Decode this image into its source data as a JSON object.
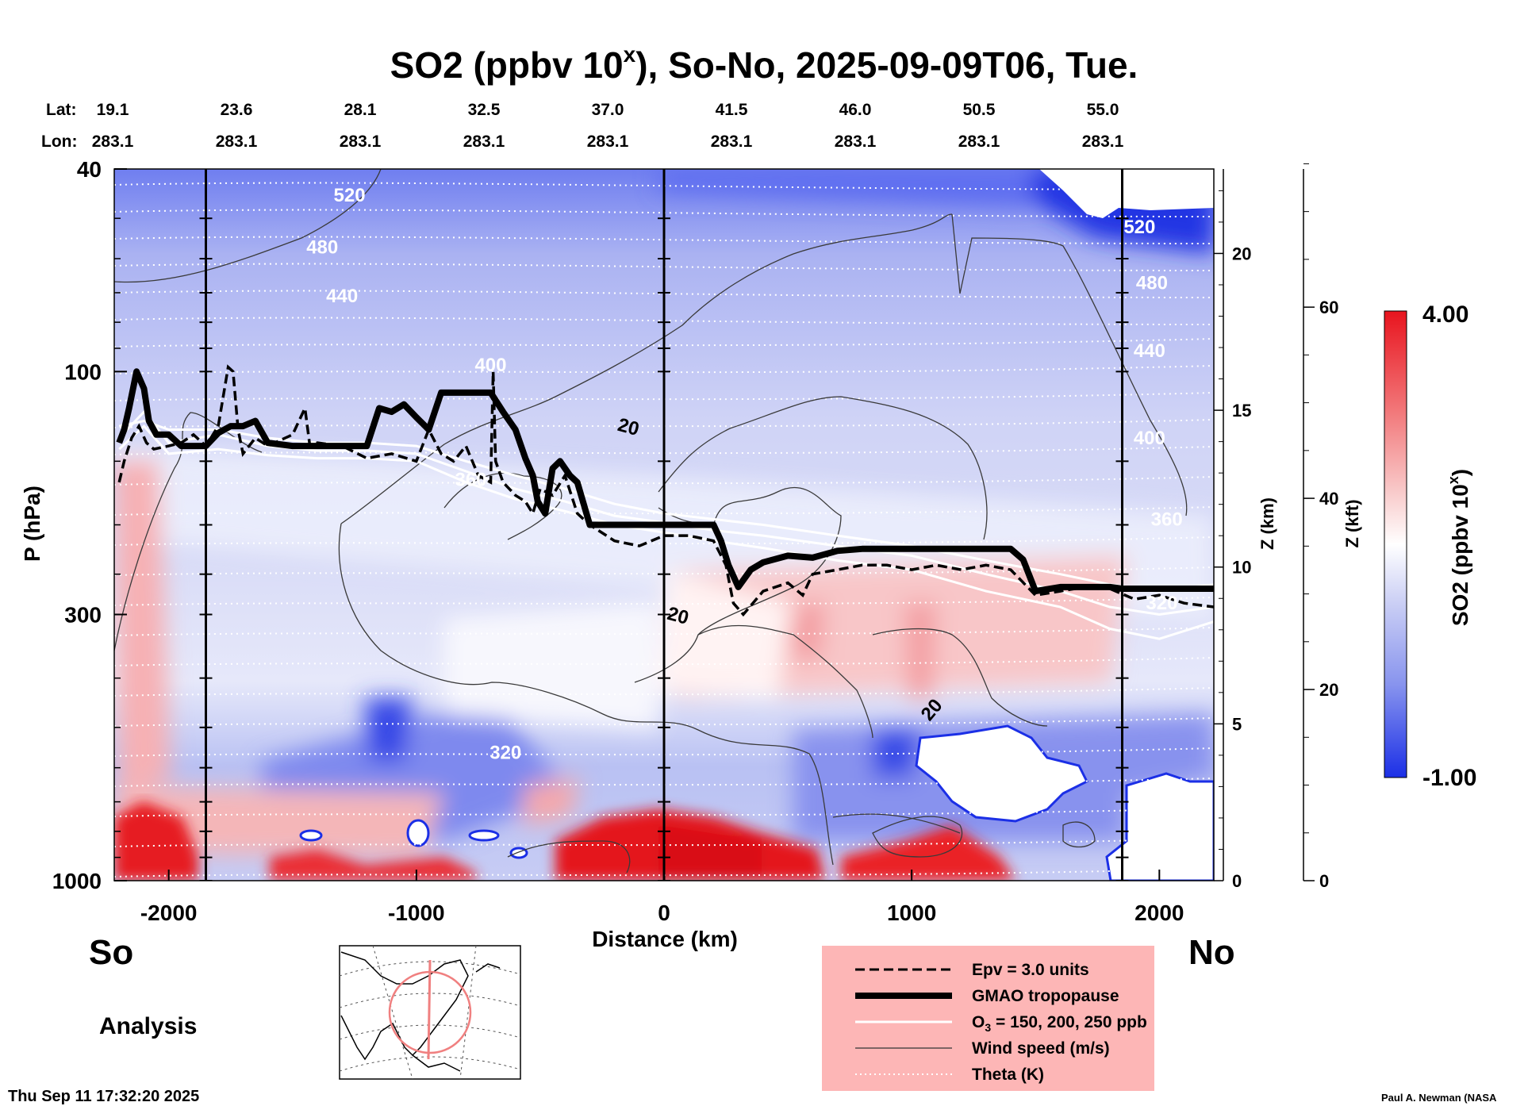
{
  "title_main": "SO2 (ppbv 10",
  "title_sup": "x",
  "title_rest": "), So-No, 2025-09-09T06, Tue.",
  "lat_label": "Lat:",
  "lon_label": "Lon:",
  "lat_values": [
    "19.1",
    "23.6",
    "28.1",
    "32.5",
    "37.0",
    "41.5",
    "46.0",
    "50.5",
    "55.0"
  ],
  "lon_values": [
    "283.1",
    "283.1",
    "283.1",
    "283.1",
    "283.1",
    "283.1",
    "283.1",
    "283.1",
    "283.1"
  ],
  "left_end_label": "So",
  "right_end_label": "No",
  "analysis_label": "Analysis",
  "timestamp": "Thu Sep 11 17:32:20 2025",
  "credit": "Paul A. Newman (NASA",
  "colors": {
    "red": "#e8141e",
    "blue": "#1b2fe6",
    "white": "#ffffff",
    "legend_bg": "#fdb6b6"
  },
  "chart_data": {
    "type": "heatmap",
    "title": "SO2 (ppbv 10^x), So-No, 2025-09-09T06, Tue.",
    "xlabel": "Distance (km)",
    "ylabel": "P (hPa)",
    "ylabel_z_km": "Z (km)",
    "ylabel_z_kft": "Z (kft)",
    "xlim": [
      -2220,
      2220
    ],
    "x_ticks": [
      -2000,
      -1000,
      0,
      1000,
      2000
    ],
    "x_tick_labels": [
      "-2000",
      "-1000",
      "0",
      "1000",
      "2000"
    ],
    "ylim_hpa": [
      1000,
      40
    ],
    "y_ticks_hpa": [
      40,
      100,
      300,
      1000
    ],
    "y_tick_labels": [
      "40",
      "100",
      "300",
      "1000"
    ],
    "z_km_ticks": [
      0,
      5,
      10,
      15,
      20
    ],
    "z_km_labels": [
      "0",
      "5",
      "10",
      "15",
      "20"
    ],
    "z_kft_ticks": [
      0,
      20,
      40,
      60
    ],
    "z_kft_labels": [
      "0",
      "20",
      "40",
      "60"
    ],
    "station_markers_km": [
      -1850,
      0,
      1850
    ],
    "colorbar": {
      "label": "SO2 (ppbv 10",
      "label_sup": "x",
      "label_end": ")",
      "min": -1.0,
      "max": 4.0,
      "min_label": "-1.00",
      "max_label": "4.00",
      "colors": [
        "#1b2fe6",
        "#b8bff0",
        "#ffffff",
        "#f5b8b8",
        "#e8141e"
      ]
    },
    "theta_contours": [
      {
        "label": "520",
        "x_km": -1270,
        "p_hpa": 45
      },
      {
        "label": "480",
        "x_km": -1380,
        "p_hpa": 57
      },
      {
        "label": "440",
        "x_km": -1300,
        "p_hpa": 71
      },
      {
        "label": "400",
        "x_km": -700,
        "p_hpa": 97
      },
      {
        "label": "360",
        "x_km": -780,
        "p_hpa": 163
      },
      {
        "label": "320",
        "x_km": -640,
        "p_hpa": 560
      },
      {
        "label": "520",
        "x_km": 1920,
        "p_hpa": 52
      },
      {
        "label": "480",
        "x_km": 1970,
        "p_hpa": 67
      },
      {
        "label": "440",
        "x_km": 1960,
        "p_hpa": 91
      },
      {
        "label": "400",
        "x_km": 1960,
        "p_hpa": 135
      },
      {
        "label": "360",
        "x_km": 2030,
        "p_hpa": 195
      },
      {
        "label": "320",
        "x_km": 2010,
        "p_hpa": 285
      }
    ],
    "wind_contours": [
      {
        "label": "20",
        "x_km": -150,
        "p_hpa": 132
      },
      {
        "label": "20",
        "x_km": 50,
        "p_hpa": 310
      },
      {
        "label": "20",
        "x_km": 1100,
        "p_hpa": 470
      }
    ],
    "series": [
      {
        "name": "GMAO tropopause",
        "x_km": [
          -2200,
          -2180,
          -2160,
          -2130,
          -2100,
          -2080,
          -2050,
          -2000,
          -1950,
          -1900,
          -1850,
          -1800,
          -1750,
          -1700,
          -1650,
          -1600,
          -1500,
          -1400,
          -1300,
          -1200,
          -1150,
          -1100,
          -1050,
          -1000,
          -950,
          -900,
          -850,
          -800,
          -750,
          -700,
          -650,
          -600,
          -560,
          -530,
          -510,
          -480,
          -450,
          -420,
          -380,
          -350,
          -300,
          -200,
          -100,
          0,
          100,
          200,
          230,
          260,
          300,
          350,
          400,
          500,
          600,
          700,
          800,
          1000,
          1200,
          1400,
          1450,
          1500,
          1600,
          1700,
          1800,
          1850,
          1900,
          2000,
          2100,
          2220
        ],
        "p_hpa": [
          138,
          130,
          118,
          100,
          108,
          125,
          133,
          133,
          140,
          140,
          140,
          132,
          128,
          128,
          125,
          138,
          140,
          140,
          140,
          140,
          118,
          120,
          116,
          123,
          130,
          110,
          110,
          110,
          110,
          110,
          120,
          130,
          148,
          160,
          180,
          190,
          155,
          150,
          160,
          165,
          200,
          200,
          200,
          200,
          200,
          200,
          215,
          240,
          265,
          245,
          237,
          230,
          232,
          225,
          223,
          223,
          223,
          223,
          234,
          270,
          265,
          265,
          265,
          267,
          267,
          267,
          267,
          267
        ],
        "style": "thick solid black"
      },
      {
        "name": "Epv = 3.0 units",
        "x_km": [
          -2200,
          -2180,
          -2150,
          -2120,
          -2090,
          -2060,
          -2000,
          -1950,
          -1900,
          -1850,
          -1800,
          -1760,
          -1740,
          -1720,
          -1700,
          -1650,
          -1600,
          -1500,
          -1450,
          -1430,
          -1400,
          -1300,
          -1200,
          -1100,
          -1000,
          -950,
          -900,
          -850,
          -800,
          -750,
          -700,
          -690,
          -680,
          -650,
          -600,
          -560,
          -530,
          -500,
          -450,
          -400,
          -350,
          -300,
          -200,
          -100,
          0,
          100,
          200,
          250,
          280,
          320,
          400,
          500,
          560,
          600,
          700,
          800,
          900,
          1000,
          1100,
          1200,
          1300,
          1400,
          1500,
          1600,
          1700,
          1800,
          1900,
          2000,
          2100,
          2220
        ],
        "p_hpa": [
          165,
          150,
          135,
          128,
          138,
          142,
          140,
          138,
          133,
          140,
          128,
          98,
          100,
          130,
          145,
          135,
          140,
          133,
          118,
          140,
          138,
          140,
          148,
          145,
          150,
          130,
          145,
          150,
          140,
          160,
          165,
          100,
          150,
          165,
          175,
          180,
          190,
          170,
          175,
          160,
          190,
          200,
          215,
          220,
          210,
          210,
          215,
          240,
          285,
          300,
          270,
          260,
          275,
          250,
          245,
          240,
          240,
          245,
          240,
          245,
          240,
          245,
          275,
          270,
          265,
          267,
          280,
          275,
          285,
          290
        ],
        "style": "dashed black"
      },
      {
        "name": "O3 = 150, 200, 250 ppb",
        "lines": [
          {
            "x_km": [
              -2200,
              -2100,
              -2000,
              -1800,
              -1600,
              -1400,
              -1200,
              -1000,
              -800,
              -600,
              -400,
              -200,
              0,
              200,
              400,
              700,
              1000,
              1300,
              1600,
              1800,
              2000,
              2220
            ],
            "p_hpa": [
              128,
              125,
              130,
              130,
              135,
              138,
              138,
              140,
              150,
              160,
              170,
              182,
              190,
              195,
              200,
              210,
              220,
              235,
              250,
              262,
              270,
              262
            ]
          },
          {
            "x_km": [
              -2200,
              -2100,
              -2000,
              -1800,
              -1600,
              -1400,
              -1200,
              -1000,
              -800,
              -600,
              -400,
              -200,
              0,
              200,
              400,
              700,
              1000,
              1300,
              1600,
              1800,
              2000,
              2220
            ],
            "p_hpa": [
              135,
              120,
              138,
              133,
              140,
              143,
              143,
              145,
              157,
              170,
              180,
              192,
              198,
              205,
              210,
              220,
              230,
              250,
              270,
              290,
              300,
              290
            ]
          },
          {
            "x_km": [
              -2200,
              -2100,
              -2000,
              -1800,
              -1600,
              -1400,
              -1200,
              -1000,
              -800,
              -600,
              -400,
              -200,
              0,
              200,
              400,
              700,
              1000,
              1300,
              1600,
              1800,
              2000,
              2220
            ],
            "p_hpa": [
              142,
              128,
              145,
              142,
              146,
              148,
              148,
              150,
              165,
              178,
              188,
              200,
              207,
              215,
              222,
              235,
              245,
              270,
              290,
              320,
              335,
              310
            ]
          }
        ],
        "style": "white solid"
      },
      {
        "name": "Wind speed (m/s)",
        "style": "thin solid gray"
      },
      {
        "name": "Theta (K)",
        "style": "dotted white"
      }
    ]
  },
  "legend_items": [
    {
      "label": "Epv = 3.0 units"
    },
    {
      "label": "GMAO tropopause"
    },
    {
      "label_pre": "O",
      "label_sub": "3",
      "label_post": " = 150, 200, 250 ppb"
    },
    {
      "label": "Wind speed (m/s)"
    },
    {
      "label": "Theta (K)"
    }
  ]
}
